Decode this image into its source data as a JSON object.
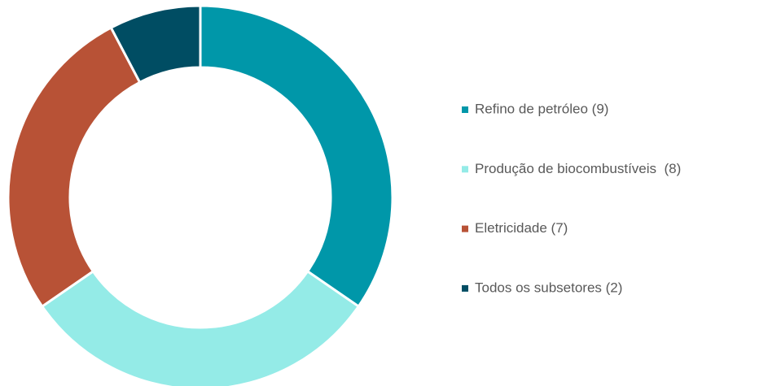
{
  "chart_data": {
    "type": "donut",
    "categories": [
      "Refino de petróleo (9)",
      "Produção de biocombustíveis  (8)",
      "Eletricidade (7)",
      "Todos os subsetores (2)"
    ],
    "values": [
      9,
      8,
      7,
      2
    ],
    "colors": [
      "#0097a9",
      "#94ebe7",
      "#b85236",
      "#004d63"
    ],
    "legend": "right"
  }
}
